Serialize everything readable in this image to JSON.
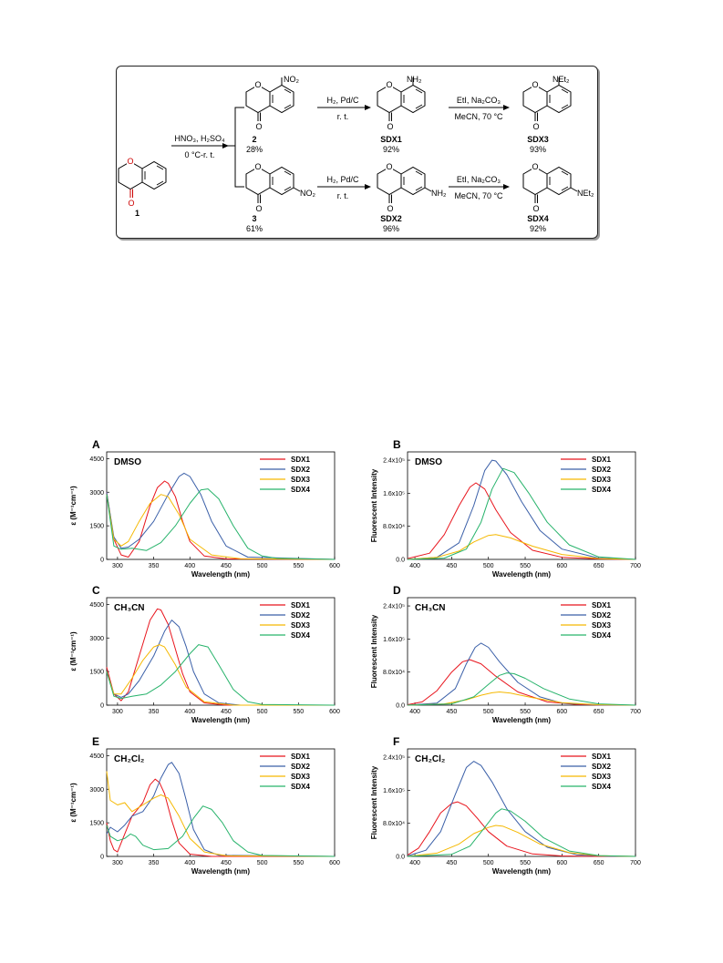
{
  "scheme": {
    "start": {
      "number": "1"
    },
    "step1": {
      "reagent": "HNO₃, H₂SO₄",
      "conditions": "0 °C-r. t."
    },
    "step2": {
      "reagent": "H₂, Pd/C",
      "conditions": "r. t."
    },
    "step3": {
      "reagent": "EtI, Na₂CO₃",
      "conditions": "MeCN, 70 °C"
    },
    "compounds": [
      {
        "id": "2",
        "yield": "28%",
        "substituent": "NO₂"
      },
      {
        "id": "SDX1",
        "yield": "92%",
        "substituent": "NH₂"
      },
      {
        "id": "SDX3",
        "yield": "93%",
        "substituent": "NEt₂"
      },
      {
        "id": "3",
        "yield": "61%",
        "substituent": "NO₂"
      },
      {
        "id": "SDX2",
        "yield": "96%",
        "substituent": "NH₂"
      },
      {
        "id": "SDX4",
        "yield": "92%",
        "substituent": "NEt₂"
      }
    ]
  },
  "colors": {
    "SDX1": "#e8141c",
    "SDX2": "#3a5fa8",
    "SDX3": "#f5b800",
    "SDX4": "#27b36b"
  },
  "chart_data": [
    {
      "panel": "A",
      "solvent": "DMSO",
      "type": "line",
      "xlabel": "Wavelength (nm)",
      "ylabel": "ε (M⁻¹cm⁻¹)",
      "xlim": [
        285,
        600
      ],
      "ylim": [
        0,
        4800
      ],
      "xticks": [
        300,
        350,
        400,
        450,
        500,
        550,
        600
      ],
      "yticks": [
        0,
        1500,
        3000,
        4500
      ],
      "ytick_labels": [
        "0",
        "1500",
        "3000",
        "4500"
      ],
      "series": [
        {
          "name": "SDX1",
          "x": [
            285,
            295,
            305,
            315,
            330,
            345,
            355,
            365,
            370,
            380,
            390,
            400,
            420,
            450,
            600
          ],
          "y": [
            3000,
            900,
            200,
            100,
            800,
            2400,
            3200,
            3500,
            3400,
            2800,
            1700,
            800,
            150,
            20,
            0
          ]
        },
        {
          "name": "SDX2",
          "x": [
            285,
            295,
            305,
            315,
            330,
            350,
            370,
            385,
            392,
            400,
            415,
            430,
            450,
            480,
            600
          ],
          "y": [
            3000,
            1000,
            500,
            550,
            900,
            1700,
            2900,
            3700,
            3850,
            3700,
            2900,
            1700,
            600,
            100,
            0
          ]
        },
        {
          "name": "SDX3",
          "x": [
            285,
            295,
            305,
            315,
            330,
            345,
            360,
            370,
            385,
            400,
            430,
            470,
            600
          ],
          "y": [
            2900,
            900,
            600,
            800,
            1700,
            2500,
            2900,
            2800,
            2000,
            900,
            200,
            30,
            0
          ]
        },
        {
          "name": "SDX4",
          "x": [
            285,
            295,
            305,
            320,
            340,
            360,
            380,
            400,
            415,
            425,
            440,
            460,
            480,
            500,
            520,
            600
          ],
          "y": [
            2900,
            600,
            450,
            500,
            400,
            750,
            1500,
            2500,
            3100,
            3150,
            2700,
            1500,
            500,
            150,
            50,
            0
          ]
        }
      ]
    },
    {
      "panel": "B",
      "solvent": "DMSO",
      "type": "line",
      "xlabel": "Wavelength (nm)",
      "ylabel": "Fluorescent Intensity",
      "xlim": [
        390,
        700
      ],
      "ylim": [
        0,
        260000
      ],
      "xticks": [
        400,
        450,
        500,
        550,
        600,
        650,
        700
      ],
      "yticks": [
        0,
        80000,
        160000,
        240000
      ],
      "ytick_labels": [
        "0.0",
        "8.0x10⁴",
        "1.6x10⁵",
        "2.4x10⁵"
      ],
      "series": [
        {
          "name": "SDX1",
          "x": [
            390,
            420,
            440,
            460,
            475,
            483,
            495,
            510,
            530,
            560,
            600,
            650,
            700
          ],
          "y": [
            2000,
            15000,
            60000,
            130000,
            175000,
            185000,
            170000,
            120000,
            65000,
            22000,
            5000,
            1000,
            0
          ]
        },
        {
          "name": "SDX2",
          "x": [
            390,
            430,
            460,
            480,
            495,
            505,
            510,
            525,
            545,
            570,
            600,
            650,
            700
          ],
          "y": [
            0,
            5000,
            40000,
            130000,
            215000,
            240000,
            238000,
            205000,
            140000,
            70000,
            25000,
            3000,
            0
          ]
        },
        {
          "name": "SDX3",
          "x": [
            390,
            430,
            460,
            480,
            500,
            510,
            530,
            560,
            600,
            650,
            700
          ],
          "y": [
            0,
            5000,
            20000,
            42000,
            58000,
            60000,
            52000,
            32000,
            12000,
            2000,
            0
          ]
        },
        {
          "name": "SDX4",
          "x": [
            390,
            440,
            470,
            490,
            505,
            520,
            535,
            555,
            580,
            610,
            650,
            700
          ],
          "y": [
            0,
            3000,
            25000,
            90000,
            170000,
            220000,
            210000,
            160000,
            90000,
            35000,
            6000,
            0
          ]
        }
      ]
    },
    {
      "panel": "C",
      "solvent": "CH₃CN",
      "type": "line",
      "xlabel": "Wavelength (nm)",
      "ylabel": "ε (M⁻¹cm⁻¹)",
      "xlim": [
        285,
        600
      ],
      "ylim": [
        0,
        4800
      ],
      "xticks": [
        300,
        350,
        400,
        450,
        500,
        550,
        600
      ],
      "yticks": [
        0,
        1500,
        3000,
        4500
      ],
      "ytick_labels": [
        "0",
        "1500",
        "3000",
        "4500"
      ],
      "series": [
        {
          "name": "SDX1",
          "x": [
            285,
            295,
            305,
            315,
            330,
            345,
            355,
            360,
            370,
            380,
            390,
            400,
            420,
            450,
            600
          ],
          "y": [
            1700,
            500,
            200,
            600,
            2200,
            3800,
            4300,
            4250,
            3600,
            2500,
            1400,
            600,
            100,
            0,
            0
          ]
        },
        {
          "name": "SDX2",
          "x": [
            285,
            295,
            305,
            315,
            330,
            350,
            365,
            375,
            385,
            395,
            405,
            420,
            440,
            470,
            600
          ],
          "y": [
            1500,
            500,
            350,
            500,
            1100,
            2200,
            3300,
            3800,
            3500,
            2600,
            1500,
            500,
            100,
            0,
            0
          ]
        },
        {
          "name": "SDX3",
          "x": [
            285,
            295,
            305,
            320,
            335,
            350,
            358,
            365,
            380,
            395,
            420,
            460,
            600
          ],
          "y": [
            1500,
            500,
            500,
            1200,
            2000,
            2600,
            2700,
            2600,
            1800,
            800,
            150,
            0,
            0
          ]
        },
        {
          "name": "SDX4",
          "x": [
            285,
            295,
            305,
            320,
            340,
            360,
            380,
            400,
            412,
            425,
            440,
            460,
            480,
            500,
            600
          ],
          "y": [
            1500,
            400,
            300,
            400,
            500,
            900,
            1500,
            2300,
            2700,
            2600,
            1800,
            700,
            150,
            30,
            0
          ]
        }
      ]
    },
    {
      "panel": "D",
      "solvent": "CH₃CN",
      "type": "line",
      "xlabel": "Wavelength (nm)",
      "ylabel": "Fluorescent Intensity",
      "xlim": [
        390,
        700
      ],
      "ylim": [
        0,
        260000
      ],
      "xticks": [
        400,
        450,
        500,
        550,
        600,
        650,
        700
      ],
      "yticks": [
        0,
        80000,
        160000,
        240000
      ],
      "ytick_labels": [
        "0.0",
        "8.0x10⁴",
        "1.6x10⁵",
        "2.4x10⁵"
      ],
      "series": [
        {
          "name": "SDX1",
          "x": [
            390,
            410,
            430,
            450,
            465,
            475,
            490,
            510,
            540,
            580,
            620,
            660,
            700
          ],
          "y": [
            1000,
            8000,
            35000,
            80000,
            105000,
            110000,
            100000,
            70000,
            32000,
            8000,
            1500,
            0,
            0
          ]
        },
        {
          "name": "SDX2",
          "x": [
            390,
            430,
            455,
            470,
            482,
            490,
            500,
            515,
            540,
            570,
            600,
            650,
            700
          ],
          "y": [
            0,
            5000,
            40000,
            100000,
            140000,
            150000,
            140000,
            105000,
            55000,
            20000,
            5000,
            500,
            0
          ]
        },
        {
          "name": "SDX3",
          "x": [
            390,
            440,
            470,
            490,
            505,
            515,
            530,
            560,
            600,
            650,
            700
          ],
          "y": [
            0,
            3000,
            13000,
            24000,
            30000,
            32000,
            29000,
            18000,
            6000,
            1000,
            0
          ]
        },
        {
          "name": "SDX4",
          "x": [
            390,
            450,
            480,
            500,
            515,
            525,
            535,
            550,
            575,
            610,
            650,
            700
          ],
          "y": [
            0,
            3000,
            20000,
            50000,
            72000,
            78000,
            76000,
            65000,
            40000,
            15000,
            3000,
            0
          ]
        }
      ]
    },
    {
      "panel": "E",
      "solvent": "CH₂Cl₂",
      "type": "line",
      "xlabel": "Wavelength (nm)",
      "ylabel": "ε (M⁻¹cm⁻¹)",
      "xlim": [
        285,
        600
      ],
      "ylim": [
        0,
        4800
      ],
      "xticks": [
        300,
        350,
        400,
        450,
        500,
        550,
        600
      ],
      "yticks": [
        0,
        1500,
        3000,
        4500
      ],
      "ytick_labels": [
        "0",
        "1500",
        "3000",
        "4500"
      ],
      "series": [
        {
          "name": "SDX1",
          "x": [
            285,
            290,
            295,
            300,
            310,
            320,
            335,
            345,
            352,
            358,
            365,
            375,
            385,
            400,
            430,
            600
          ],
          "y": [
            1500,
            700,
            300,
            200,
            1000,
            1800,
            2400,
            3200,
            3450,
            3300,
            2800,
            1600,
            600,
            100,
            0,
            0
          ]
        },
        {
          "name": "SDX2",
          "x": [
            285,
            290,
            300,
            310,
            320,
            335,
            350,
            360,
            370,
            375,
            385,
            395,
            405,
            420,
            440,
            600
          ],
          "y": [
            1000,
            1300,
            1100,
            1400,
            1800,
            2000,
            2700,
            3500,
            4100,
            4200,
            3700,
            2500,
            1200,
            300,
            50,
            0
          ]
        },
        {
          "name": "SDX3",
          "x": [
            285,
            290,
            300,
            310,
            320,
            335,
            350,
            360,
            370,
            385,
            400,
            420,
            450,
            600
          ],
          "y": [
            3800,
            2500,
            2300,
            2400,
            2000,
            2300,
            2600,
            2750,
            2600,
            1800,
            800,
            200,
            30,
            0
          ]
        },
        {
          "name": "SDX4",
          "x": [
            285,
            290,
            300,
            310,
            318,
            325,
            335,
            350,
            370,
            390,
            405,
            418,
            430,
            445,
            460,
            480,
            500,
            600
          ],
          "y": [
            1400,
            900,
            700,
            800,
            1000,
            900,
            500,
            300,
            350,
            900,
            1700,
            2250,
            2100,
            1500,
            700,
            200,
            40,
            0
          ]
        }
      ]
    },
    {
      "panel": "F",
      "solvent": "CH₂Cl₂",
      "type": "line",
      "xlabel": "Wavelength (nm)",
      "ylabel": "Fluorescent Intensity",
      "xlim": [
        390,
        700
      ],
      "ylim": [
        0,
        260000
      ],
      "xticks": [
        400,
        450,
        500,
        550,
        600,
        650,
        700
      ],
      "yticks": [
        0,
        80000,
        160000,
        240000
      ],
      "ytick_labels": [
        "0.0",
        "8.0x10⁴",
        "1.6x10⁵",
        "2.4x10⁵"
      ],
      "series": [
        {
          "name": "SDX1",
          "x": [
            390,
            405,
            420,
            435,
            450,
            458,
            470,
            485,
            500,
            525,
            560,
            600,
            650,
            700
          ],
          "y": [
            3000,
            20000,
            60000,
            105000,
            128000,
            132000,
            122000,
            92000,
            60000,
            25000,
            6000,
            1000,
            0,
            0
          ]
        },
        {
          "name": "SDX2",
          "x": [
            390,
            415,
            435,
            455,
            470,
            480,
            490,
            505,
            525,
            550,
            580,
            620,
            660,
            700
          ],
          "y": [
            1000,
            15000,
            60000,
            150000,
            215000,
            230000,
            220000,
            180000,
            115000,
            60000,
            22000,
            4000,
            500,
            0
          ]
        },
        {
          "name": "SDX3",
          "x": [
            390,
            430,
            460,
            480,
            500,
            510,
            520,
            540,
            570,
            610,
            650,
            700
          ],
          "y": [
            0,
            8000,
            30000,
            55000,
            70000,
            75000,
            73000,
            58000,
            30000,
            9000,
            1500,
            0
          ]
        },
        {
          "name": "SDX4",
          "x": [
            390,
            450,
            475,
            495,
            510,
            518,
            530,
            550,
            575,
            610,
            650,
            700
          ],
          "y": [
            0,
            5000,
            25000,
            70000,
            105000,
            115000,
            110000,
            85000,
            45000,
            13000,
            2000,
            0
          ]
        }
      ]
    }
  ]
}
